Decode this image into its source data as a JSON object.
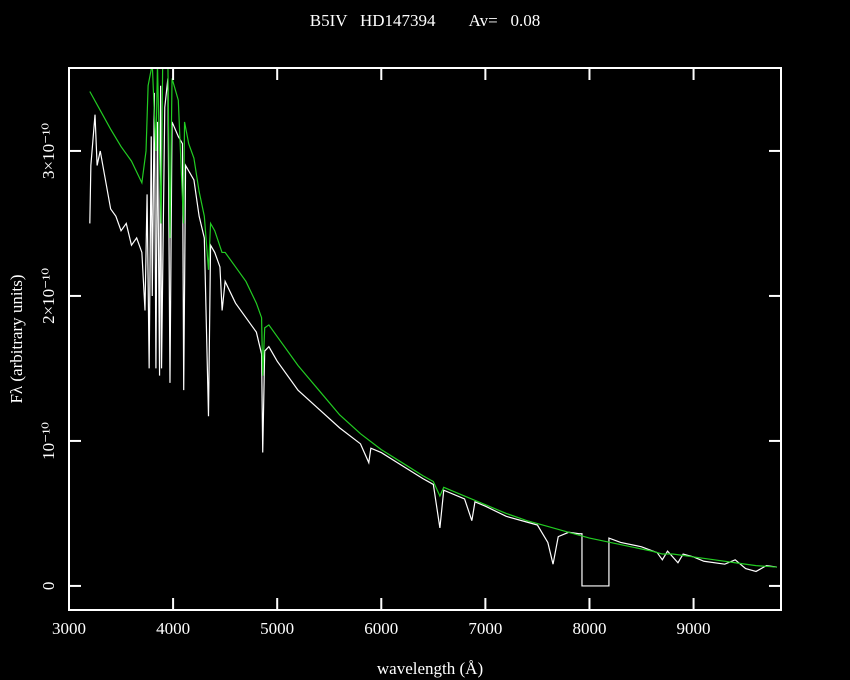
{
  "chart_data": {
    "type": "line",
    "title": "B5IV   HD147394        Av=   0.08",
    "xlabel": "wavelength (Å)",
    "ylabel": "Fλ (arbitrary units)",
    "xlim": [
      3000,
      9840
    ],
    "ylim": [
      -1.66e-11,
      3.572e-10
    ],
    "xticks": [
      3000,
      4000,
      5000,
      6000,
      7000,
      8000,
      9000
    ],
    "yticks": [
      0,
      {
        "value": 1e-10,
        "label": "10⁻¹⁰"
      },
      {
        "value": 2e-10,
        "label": "2×10⁻¹⁰"
      },
      {
        "value": 3e-10,
        "label": "3×10⁻¹⁰"
      }
    ],
    "series": [
      {
        "color": "#ffffff",
        "x": [
          3200,
          3210,
          3250,
          3270,
          3300,
          3350,
          3400,
          3450,
          3500,
          3550,
          3600,
          3650,
          3700,
          3730,
          3750,
          3770,
          3790,
          3800,
          3820,
          3835,
          3850,
          3870,
          3880,
          3889,
          3920,
          3950,
          3970,
          3990,
          4050,
          4090,
          4102,
          4120,
          4200,
          4250,
          4300,
          4340,
          4360,
          4400,
          4450,
          4471,
          4500,
          4600,
          4700,
          4800,
          4850,
          4861,
          4880,
          4920,
          5000,
          5200,
          5400,
          5600,
          5800,
          5880,
          5900,
          6000,
          6200,
          6400,
          6500,
          6563,
          6600,
          6800,
          6870,
          6900,
          7000,
          7200,
          7400,
          7500,
          7600,
          7650,
          7700,
          7800,
          7900,
          7928,
          7928,
          8187,
          8187,
          8300,
          8500,
          8650,
          8700,
          8750,
          8850,
          8900,
          9000,
          9100,
          9300,
          9400,
          9500,
          9600,
          9700,
          9800
        ],
        "values": [
          2.5e-10,
          2.9e-10,
          3.25e-10,
          2.9e-10,
          3e-10,
          2.8e-10,
          2.6e-10,
          2.55e-10,
          2.45e-10,
          2.5e-10,
          2.35e-10,
          2.4e-10,
          2.3e-10,
          1.9e-10,
          2.7e-10,
          1.5e-10,
          3.1e-10,
          2e-10,
          3.4e-10,
          1.5e-10,
          3.2e-10,
          1.45e-10,
          3.45e-10,
          1.5e-10,
          3.3e-10,
          3.5e-10,
          1.4e-10,
          3.2e-10,
          3.1e-10,
          3.05e-10,
          1.35e-10,
          2.9e-10,
          2.8e-10,
          2.55e-10,
          2.4e-10,
          1.17e-10,
          2.35e-10,
          2.3e-10,
          2.2e-10,
          1.9e-10,
          2.1e-10,
          1.95e-10,
          1.85e-10,
          1.75e-10,
          1.6e-10,
          9.2e-11,
          1.62e-10,
          1.65e-10,
          1.55e-10,
          1.35e-10,
          1.22e-10,
          1.09e-10,
          9.8e-11,
          8.5e-11,
          9.5e-11,
          9.2e-11,
          8.3e-11,
          7.4e-11,
          7e-11,
          4e-11,
          6.6e-11,
          6e-11,
          4.5e-11,
          5.8e-11,
          5.5e-11,
          4.8e-11,
          4.4e-11,
          4.2e-11,
          3e-11,
          1.5e-11,
          3.4e-11,
          3.7e-11,
          3.6e-11,
          3.6e-11,
          0,
          0,
          3.3e-11,
          3e-11,
          2.7e-11,
          2.3e-11,
          1.8e-11,
          2.4e-11,
          1.6e-11,
          2.2e-11,
          2e-11,
          1.7e-11,
          1.5e-11,
          1.8e-11,
          1.2e-11,
          1e-11,
          1.4e-11,
          1.3e-11
        ]
      },
      {
        "color": "#22cc22",
        "x": [
          3200,
          3300,
          3400,
          3500,
          3600,
          3700,
          3740,
          3760,
          3800,
          3835,
          3850,
          3885,
          3900,
          3950,
          3970,
          3990,
          4050,
          4100,
          4110,
          4150,
          4200,
          4250,
          4300,
          4340,
          4360,
          4400,
          4470,
          4500,
          4600,
          4700,
          4800,
          4850,
          4861,
          4880,
          4920,
          5000,
          5200,
          5400,
          5600,
          5800,
          6000,
          6200,
          6400,
          6500,
          6563,
          6600,
          6800,
          7000,
          7200,
          7400,
          7600,
          7800,
          8000,
          8200,
          8400,
          8600,
          8700,
          8800,
          9000,
          9200,
          9400,
          9600,
          9800
        ],
        "values": [
          3.41e-10,
          3.28e-10,
          3.15e-10,
          3.03e-10,
          2.93e-10,
          2.78e-10,
          3e-10,
          3.45e-10,
          3.6e-10,
          3e-10,
          3.6e-10,
          2.5e-10,
          3.6e-10,
          3.6e-10,
          2.4e-10,
          3.5e-10,
          3.35e-10,
          2.5e-10,
          3.2e-10,
          3.05e-10,
          2.95e-10,
          2.72e-10,
          2.55e-10,
          2.18e-10,
          2.5e-10,
          2.45e-10,
          2.3e-10,
          2.3e-10,
          2.2e-10,
          2.1e-10,
          1.95e-10,
          1.85e-10,
          1.45e-10,
          1.78e-10,
          1.8e-10,
          1.72e-10,
          1.52e-10,
          1.35e-10,
          1.18e-10,
          1.05e-10,
          9.4e-11,
          8.5e-11,
          7.6e-11,
          7.2e-11,
          6.2e-11,
          6.8e-11,
          6.2e-11,
          5.6e-11,
          5e-11,
          4.5e-11,
          4.1e-11,
          3.7e-11,
          3.3e-11,
          3e-11,
          2.7e-11,
          2.4e-11,
          2.2e-11,
          2.2e-11,
          2e-11,
          1.8e-11,
          1.6e-11,
          1.4e-11,
          1.3e-11
        ]
      }
    ]
  }
}
